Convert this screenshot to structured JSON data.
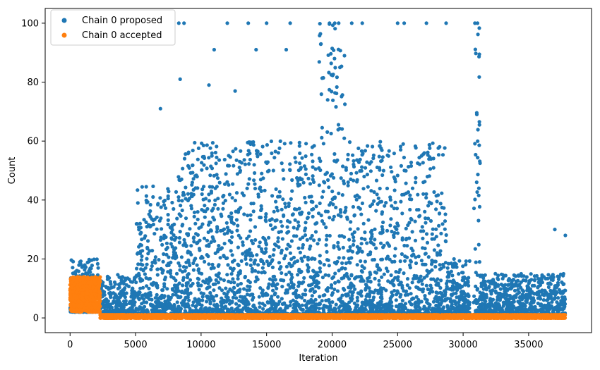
{
  "chart_data": {
    "type": "scatter",
    "title": "",
    "xlabel": "Iteration",
    "ylabel": "Count",
    "xlim": [
      -1900,
      39800
    ],
    "ylim": [
      -5,
      105
    ],
    "xticks": [
      0,
      5000,
      10000,
      15000,
      20000,
      25000,
      30000,
      35000
    ],
    "xtick_labels": [
      "0",
      "5000",
      "10000",
      "15000",
      "20000",
      "25000",
      "30000",
      "35000"
    ],
    "yticks": [
      0,
      20,
      40,
      60,
      80,
      100
    ],
    "ytick_labels": [
      "0",
      "20",
      "40",
      "60",
      "80",
      "100"
    ],
    "grid": false,
    "legend_position": "top-left",
    "series": [
      {
        "name": "Chain 0 proposed",
        "color": "#1f77b4",
        "regions": [
          {
            "x": [
              0,
              2300
            ],
            "y_range": [
              2,
              20
            ]
          },
          {
            "x": [
              2300,
              5000
            ],
            "y_range": [
              1,
              15
            ]
          },
          {
            "x": [
              5000,
              8000
            ],
            "y_range": [
              1,
              45
            ]
          },
          {
            "x": [
              8000,
              19000
            ],
            "y_range": [
              1,
              60
            ]
          },
          {
            "x": [
              19000,
              21000
            ],
            "y_range": [
              1,
              100
            ]
          },
          {
            "x": [
              21000,
              28800
            ],
            "y_range": [
              1,
              60
            ]
          },
          {
            "x": [
              28800,
              30500
            ],
            "y_range": [
              1,
              20
            ]
          },
          {
            "x": [
              30800,
              31300
            ],
            "y_range": [
              1,
              100
            ]
          },
          {
            "x": [
              31300,
              37800
            ],
            "y_range": [
              1,
              15
            ]
          }
        ],
        "max_value": 100,
        "notable_points": [
          {
            "x": 8300,
            "y": 100
          },
          {
            "x": 8700,
            "y": 100
          },
          {
            "x": 12000,
            "y": 100
          },
          {
            "x": 13600,
            "y": 100
          },
          {
            "x": 15000,
            "y": 100
          },
          {
            "x": 16800,
            "y": 100
          },
          {
            "x": 19800,
            "y": 100
          },
          {
            "x": 20200,
            "y": 100
          },
          {
            "x": 20500,
            "y": 100
          },
          {
            "x": 21500,
            "y": 100
          },
          {
            "x": 22300,
            "y": 100
          },
          {
            "x": 25000,
            "y": 100
          },
          {
            "x": 25500,
            "y": 100
          },
          {
            "x": 27200,
            "y": 100
          },
          {
            "x": 28700,
            "y": 100
          },
          {
            "x": 30900,
            "y": 100
          },
          {
            "x": 31100,
            "y": 100
          },
          {
            "x": 11000,
            "y": 91
          },
          {
            "x": 14200,
            "y": 91
          },
          {
            "x": 16500,
            "y": 91
          },
          {
            "x": 8400,
            "y": 81
          },
          {
            "x": 10600,
            "y": 79
          },
          {
            "x": 12600,
            "y": 77
          },
          {
            "x": 6900,
            "y": 71
          },
          {
            "x": 37000,
            "y": 30
          },
          {
            "x": 37800,
            "y": 28
          }
        ]
      },
      {
        "name": "Chain 0 accepted",
        "color": "#ff7f0e",
        "regions": [
          {
            "x": [
              0,
              2300
            ],
            "y_range": [
              2,
              14
            ]
          },
          {
            "x": [
              2300,
              37800
            ],
            "y_range": [
              0,
              1
            ]
          }
        ]
      }
    ]
  }
}
